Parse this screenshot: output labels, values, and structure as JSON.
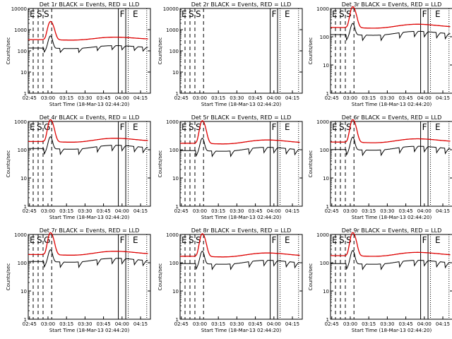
{
  "figure": {
    "background": "#ffffff",
    "grid": false,
    "legend": "none"
  },
  "chart_data": [
    {
      "type": "line",
      "panel": 1,
      "title": "Det 1r BLACK = Events, RED = LLD",
      "xlabel": "Start Time (18-Mar-13 02:44:20)",
      "ylabel": "Counts/sec",
      "yscale": "log",
      "ylim": [
        1,
        10000
      ],
      "xlim": [
        "02:44",
        "04:23"
      ],
      "x_ticks": [
        "02:45",
        "03:00",
        "03:15",
        "03:30",
        "03:45",
        "04:00",
        "04:15"
      ],
      "y_ticks": [
        "1",
        "10",
        "100",
        "1000",
        "10000"
      ],
      "markers": [
        "E",
        "S",
        "S",
        "F",
        "E"
      ],
      "flare_peak": 2500,
      "series": [
        {
          "name": "BLACK = Events",
          "color": "#000000",
          "level": 160
        },
        {
          "name": "RED = LLD",
          "color": "#dd0000",
          "level": 400
        }
      ]
    },
    {
      "type": "line",
      "panel": 2,
      "title": "Det 2r BLACK = Events, RED = LLD",
      "xlabel": "Start Time (18-Mar-13 02:44:20)",
      "ylabel": "Counts/sec",
      "yscale": "log",
      "ylim": [
        1,
        10000
      ],
      "xlim": [
        "02:44",
        "04:23"
      ],
      "x_ticks": [
        "02:45",
        "03:00",
        "03:15",
        "03:30",
        "03:45",
        "04:00",
        "04:15"
      ],
      "y_ticks": [
        "1",
        "10",
        "100",
        "1000",
        "10000"
      ],
      "markers": [
        "E",
        "S",
        "S",
        "F",
        "E"
      ],
      "flare_peak": null,
      "series": [
        {
          "name": "BLACK = Events",
          "color": "#000000",
          "level": null
        },
        {
          "name": "RED = LLD",
          "color": "#dd0000",
          "level": null
        }
      ]
    },
    {
      "type": "line",
      "panel": 3,
      "title": "Det 3r BLACK = Events, RED = LLD",
      "xlabel": "Start Time (18-Mar-13 02:44:20)",
      "ylabel": "Counts/sec",
      "yscale": "log",
      "ylim": [
        1,
        1000
      ],
      "xlim": [
        "02:44",
        "04:23"
      ],
      "x_ticks": [
        "02:45",
        "03:00",
        "03:15",
        "03:30",
        "03:45",
        "04:00",
        "04:15"
      ],
      "y_ticks": [
        "1",
        "10",
        "100",
        "1000"
      ],
      "markers": [
        "E",
        "S",
        "S",
        "F",
        "E"
      ],
      "flare_peak": 1200,
      "series": [
        {
          "name": "BLACK = Events",
          "color": "#000000",
          "level": 140
        },
        {
          "name": "RED = LLD",
          "color": "#dd0000",
          "level": 250
        }
      ]
    },
    {
      "type": "line",
      "panel": 4,
      "title": "Det 4r BLACK = Events, RED = LLD",
      "xlabel": "Start Time (18-Mar-13 02:44:20)",
      "ylabel": "Counts/sec",
      "yscale": "log",
      "ylim": [
        1,
        1000
      ],
      "xlim": [
        "02:44",
        "04:23"
      ],
      "x_ticks": [
        "02:45",
        "03:00",
        "03:15",
        "03:30",
        "03:45",
        "04:00",
        "04:15"
      ],
      "y_ticks": [
        "1",
        "10",
        "100",
        "1000"
      ],
      "markers": [
        "E",
        "S",
        "G",
        "F",
        "E"
      ],
      "flare_peak": 1200,
      "series": [
        {
          "name": "BLACK = Events",
          "color": "#000000",
          "level": 130
        },
        {
          "name": "RED = LLD",
          "color": "#dd0000",
          "level": 230
        }
      ]
    },
    {
      "type": "line",
      "panel": 5,
      "title": "Det 5r BLACK = Events, RED = LLD",
      "xlabel": "Start Time (18-Mar-13 02:44:20)",
      "ylabel": "Counts/sec",
      "yscale": "log",
      "ylim": [
        1,
        1000
      ],
      "xlim": [
        "02:44",
        "04:23"
      ],
      "x_ticks": [
        "02:45",
        "03:00",
        "03:15",
        "03:30",
        "03:45",
        "04:00",
        "04:15"
      ],
      "y_ticks": [
        "1",
        "10",
        "100",
        "1000"
      ],
      "markers": [
        "E",
        "S",
        "S",
        "F",
        "E"
      ],
      "flare_peak": 1100,
      "series": [
        {
          "name": "BLACK = Events",
          "color": "#000000",
          "level": 110
        },
        {
          "name": "RED = LLD",
          "color": "#dd0000",
          "level": 200
        }
      ]
    },
    {
      "type": "line",
      "panel": 6,
      "title": "Det 6r BLACK = Events, RED = LLD",
      "xlabel": "Start Time (18-Mar-13 02:44:20)",
      "ylabel": "Counts/sec",
      "yscale": "log",
      "ylim": [
        1,
        1000
      ],
      "xlim": [
        "02:44",
        "04:23"
      ],
      "x_ticks": [
        "02:45",
        "03:00",
        "03:15",
        "03:30",
        "03:45",
        "04:00",
        "04:15"
      ],
      "y_ticks": [
        "1",
        "10",
        "100",
        "1000"
      ],
      "markers": [
        "E",
        "S",
        "S",
        "F",
        "E"
      ],
      "flare_peak": 1200,
      "series": [
        {
          "name": "BLACK = Events",
          "color": "#000000",
          "level": 120
        },
        {
          "name": "RED = LLD",
          "color": "#dd0000",
          "level": 220
        }
      ]
    },
    {
      "type": "line",
      "panel": 7,
      "title": "Det 7r BLACK = Events, RED = LLD",
      "xlabel": "Start Time (18-Mar-13 02:44:20)",
      "ylabel": "Counts/sec",
      "yscale": "log",
      "ylim": [
        1,
        1000
      ],
      "xlim": [
        "02:44",
        "04:23"
      ],
      "x_ticks": [
        "02:45",
        "03:00",
        "03:15",
        "03:30",
        "03:45",
        "04:00",
        "04:15"
      ],
      "y_ticks": [
        "1",
        "10",
        "100",
        "1000"
      ],
      "markers": [
        "E",
        "S",
        "G",
        "F",
        "E"
      ],
      "flare_peak": 1200,
      "series": [
        {
          "name": "BLACK = Events",
          "color": "#000000",
          "level": 130
        },
        {
          "name": "RED = LLD",
          "color": "#dd0000",
          "level": 230
        }
      ]
    },
    {
      "type": "line",
      "panel": 8,
      "title": "Det 8r BLACK = Events, RED = LLD",
      "xlabel": "Start Time (18-Mar-13 02:44:20)",
      "ylabel": "Counts/sec",
      "yscale": "log",
      "ylim": [
        1,
        1000
      ],
      "xlim": [
        "02:44",
        "04:23"
      ],
      "x_ticks": [
        "02:45",
        "03:00",
        "03:15",
        "03:30",
        "03:45",
        "04:00",
        "04:15"
      ],
      "y_ticks": [
        "1",
        "10",
        "100",
        "1000"
      ],
      "markers": [
        "E",
        "S",
        "S",
        "F",
        "E"
      ],
      "flare_peak": 1100,
      "series": [
        {
          "name": "BLACK = Events",
          "color": "#000000",
          "level": 110
        },
        {
          "name": "RED = LLD",
          "color": "#dd0000",
          "level": 200
        }
      ]
    },
    {
      "type": "line",
      "panel": 9,
      "title": "Det 9r BLACK = Events, RED = LLD",
      "xlabel": "Start Time (18-Mar-13 02:44:20)",
      "ylabel": "Counts/sec",
      "yscale": "log",
      "ylim": [
        1,
        1000
      ],
      "xlim": [
        "02:44",
        "04:23"
      ],
      "x_ticks": [
        "02:45",
        "03:00",
        "03:15",
        "03:30",
        "03:45",
        "04:00",
        "04:15"
      ],
      "y_ticks": [
        "1",
        "10",
        "100",
        "1000"
      ],
      "markers": [
        "E",
        "S",
        "S",
        "F",
        "E"
      ],
      "flare_peak": 1200,
      "series": [
        {
          "name": "BLACK = Events",
          "color": "#000000",
          "level": 110
        },
        {
          "name": "RED = LLD",
          "color": "#dd0000",
          "level": 210
        }
      ]
    }
  ]
}
